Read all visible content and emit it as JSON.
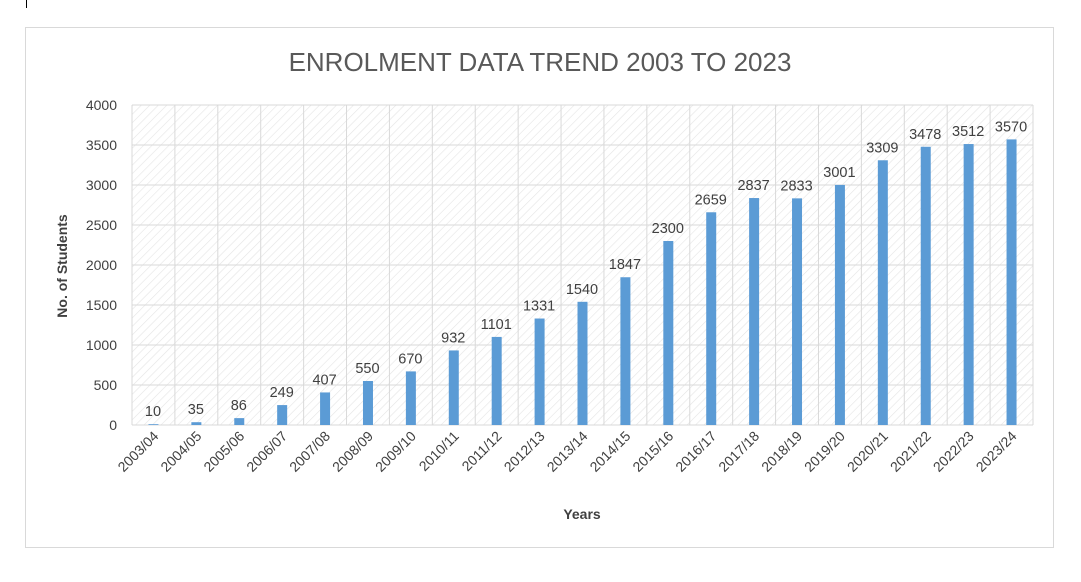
{
  "chart_data": {
    "type": "bar",
    "title": "ENROLMENT DATA TREND  2003 TO 2023",
    "xlabel": "Years",
    "ylabel": "No. of Students",
    "ylim": [
      0,
      4000
    ],
    "yticks": [
      0,
      500,
      1000,
      1500,
      2000,
      2500,
      3000,
      3500,
      4000
    ],
    "categories": [
      "2003/04",
      "2004/05",
      "2005/06",
      "2006/07",
      "2007/08",
      "2008/09",
      "2009/10",
      "2010/11",
      "2011/12",
      "2012/13",
      "2013/14",
      "2014/15",
      "2015/16",
      "2016/17",
      "2017/18",
      "2018/19",
      "2019/20",
      "2020/21",
      "2021/22",
      "2022/23",
      "2023/24"
    ],
    "values": [
      10,
      35,
      86,
      249,
      407,
      550,
      670,
      932,
      1101,
      1331,
      1540,
      1847,
      2300,
      2659,
      2837,
      2833,
      3001,
      3309,
      3478,
      3512,
      3570
    ],
    "data_labels": true,
    "grid": true,
    "legend": "none",
    "colors": {
      "bar": "#5b9bd5",
      "grid": "#d9d9d9",
      "hatch": "#e4e4e4",
      "text": "#404040",
      "title": "#595959"
    }
  }
}
